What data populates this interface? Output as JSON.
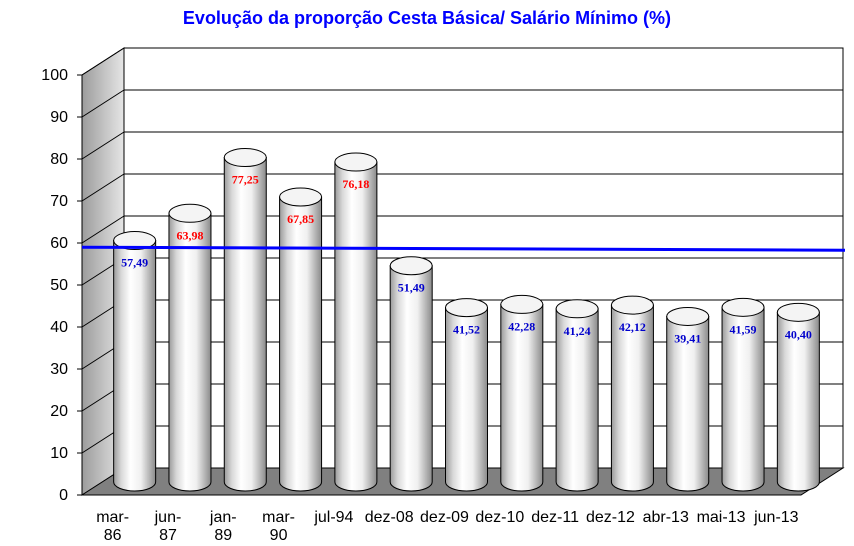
{
  "chart_data": {
    "type": "bar",
    "title": "Evolução da proporção Cesta Básica/ Salário Mínimo (%)",
    "xlabel": "",
    "ylabel": "",
    "ylim": [
      0,
      100
    ],
    "yticks": [
      "0",
      "10",
      "20",
      "30",
      "40",
      "50",
      "60",
      "70",
      "80",
      "90",
      "100"
    ],
    "categories": [
      [
        "mar-",
        "86"
      ],
      [
        "jun-",
        "87"
      ],
      [
        "jan-",
        "89"
      ],
      [
        "mar-",
        "90"
      ],
      [
        "jul-94"
      ],
      [
        "dez-08"
      ],
      [
        "dez-09"
      ],
      [
        "dez-10"
      ],
      [
        "dez-11"
      ],
      [
        "dez-12"
      ],
      [
        "abr-13"
      ],
      [
        "mai-13"
      ],
      [
        "jun-13"
      ]
    ],
    "values": [
      57.49,
      63.98,
      77.25,
      67.85,
      76.18,
      51.49,
      41.52,
      42.28,
      41.24,
      42.12,
      39.41,
      41.59,
      40.4
    ],
    "data_labels": [
      "57,49",
      "63,98",
      "77,25",
      "67,85",
      "76,18",
      "51,49",
      "41,52",
      "42,28",
      "41,24",
      "42,12",
      "39,41",
      "41,59",
      "40,40"
    ],
    "reference_line": 59,
    "grid": true,
    "style": "3d-cylinder",
    "colors": {
      "title": "#0000ff",
      "reference_line": "#0000ff",
      "label_above": "#ff0000",
      "label_below": "#0000cc",
      "floor": "#808080",
      "wall": "#ffffff",
      "side_wall": "#d9d9d9"
    }
  }
}
